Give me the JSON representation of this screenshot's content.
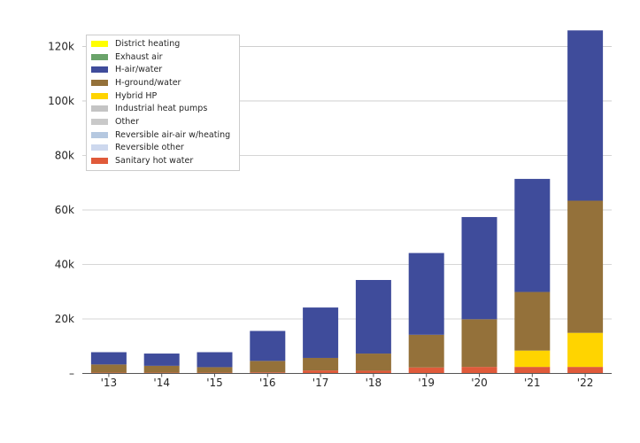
{
  "chart_data": {
    "type": "bar",
    "stacked": true,
    "title": "",
    "xlabel": "",
    "ylabel": "",
    "categories": [
      "'13",
      "'14",
      "'15",
      "'16",
      "'17",
      "'18",
      "'19",
      "'20",
      "'21",
      "'22"
    ],
    "ylim": [
      0,
      126000
    ],
    "yticks": [
      0,
      20000,
      40000,
      60000,
      80000,
      100000,
      120000
    ],
    "ytick_labels": [
      "–",
      "20k",
      "40k",
      "60k",
      "80k",
      "100k",
      "120k"
    ],
    "grid": "horizontal",
    "legend_position": "top-left",
    "series": [
      {
        "name": "District heating",
        "color": "#ffff00",
        "values": [
          0,
          0,
          0,
          0,
          0,
          0,
          0,
          0,
          0,
          0
        ]
      },
      {
        "name": "Exhaust air",
        "color": "#6aa36a",
        "values": [
          0,
          0,
          0,
          0,
          0,
          0,
          0,
          0,
          0,
          0
        ]
      },
      {
        "name": "H-air/water",
        "color": "#3f4c9b",
        "values": [
          4500,
          4500,
          5500,
          11000,
          18500,
          27000,
          30000,
          37500,
          41500,
          62500
        ]
      },
      {
        "name": "H-ground/water",
        "color": "#94713a",
        "values": [
          3000,
          2500,
          2000,
          4200,
          4600,
          6300,
          12000,
          17500,
          21500,
          48500
        ]
      },
      {
        "name": "Hybrid HP",
        "color": "#ffd400",
        "values": [
          0,
          0,
          0,
          0,
          0,
          0,
          0,
          0,
          6000,
          12500
        ]
      },
      {
        "name": "Industrial heat pumps",
        "color": "#c4c4c4",
        "values": [
          0,
          0,
          0,
          0,
          0,
          0,
          0,
          0,
          0,
          0
        ]
      },
      {
        "name": "Other",
        "color": "#c9c9c9",
        "values": [
          0,
          0,
          0,
          0,
          0,
          0,
          0,
          0,
          0,
          0
        ]
      },
      {
        "name": "Reversible air-air w/heating",
        "color": "#b5c8e0",
        "values": [
          0,
          0,
          0,
          0,
          0,
          0,
          0,
          0,
          0,
          0
        ]
      },
      {
        "name": "Reversible other",
        "color": "#cdd8ee",
        "values": [
          0,
          0,
          0,
          0,
          0,
          0,
          0,
          0,
          0,
          0
        ]
      },
      {
        "name": "Sanitary hot water",
        "color": "#e05a3a",
        "values": [
          300,
          300,
          300,
          400,
          1100,
          1000,
          2200,
          2400,
          2400,
          2400
        ]
      }
    ]
  }
}
